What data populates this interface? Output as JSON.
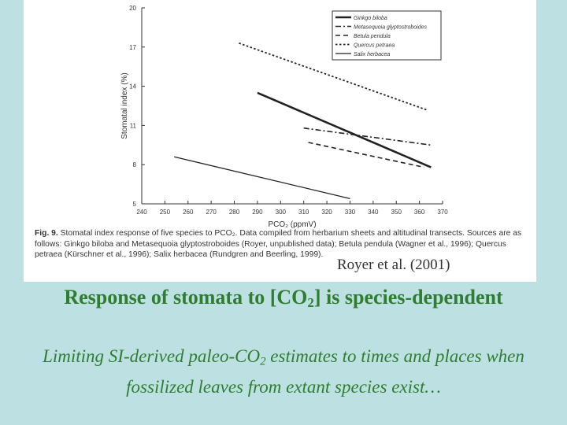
{
  "slide": {
    "title_part1": "Response of stomata to [CO",
    "title_sub": "2",
    "title_part2": "] is species-dependent",
    "subtitle_part1": "Limiting SI-derived paleo-CO",
    "subtitle_sub": "2",
    "subtitle_part2": " estimates to times and places when fossilized leaves from extant species exist…",
    "credit": "Royer et al. (2001)"
  },
  "figure": {
    "caption_label": "Fig. 9.",
    "caption_text": " Stomatal index response of five species to PCO₂. Data compiled from herbarium sheets and altitudinal transects. Sources are as follows: Ginkgo biloba and Metasequoia glyptostroboides (Royer, unpublished data); Betula pendula (Wagner et al., 1996); Quercus petraea (Kürschner et al., 1996); Salix herbacea (Rundgren and Beerling, 1999)."
  },
  "chart_data": {
    "type": "line",
    "title": "",
    "xlabel": "PCO₂ (ppmV)",
    "ylabel": "Stomatal index (%)",
    "xlim": [
      240,
      370
    ],
    "ylim": [
      5,
      20
    ],
    "xticks": [
      240,
      250,
      260,
      270,
      280,
      290,
      300,
      310,
      320,
      330,
      340,
      350,
      360,
      370
    ],
    "yticks": [
      5,
      8,
      11,
      14,
      17,
      20
    ],
    "legend_position": "top-right",
    "series": [
      {
        "name": "Ginkgo biloba",
        "style": "solid-thick",
        "x": [
          290,
          365
        ],
        "y": [
          13.5,
          7.8
        ]
      },
      {
        "name": "Metasequoia glyptostroboides",
        "style": "dash-dot",
        "x": [
          310,
          365
        ],
        "y": [
          10.8,
          9.5
        ]
      },
      {
        "name": "Betula pendula",
        "style": "dashed",
        "x": [
          312,
          362
        ],
        "y": [
          9.7,
          7.8
        ]
      },
      {
        "name": "Quercus petraea",
        "style": "dotted",
        "x": [
          282,
          363
        ],
        "y": [
          17.3,
          12.2
        ]
      },
      {
        "name": "Salix herbacea",
        "style": "solid",
        "x": [
          254,
          330
        ],
        "y": [
          8.6,
          5.4
        ]
      }
    ]
  }
}
